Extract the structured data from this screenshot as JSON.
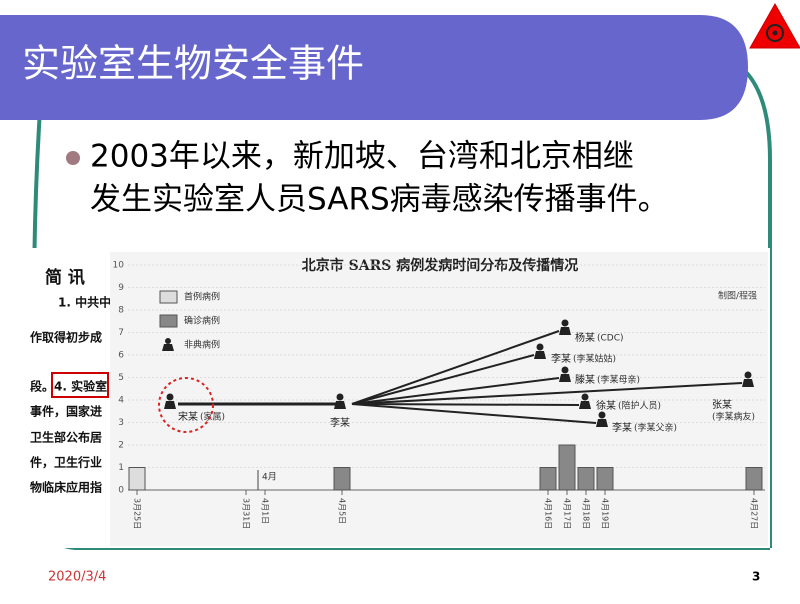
{
  "slide": {
    "title": "实验室生物安全事件",
    "bullet": [
      "2003年以来，新加坡、台湾和北京相继",
      "发生实验室人员SARS病毒感染传播事件。"
    ],
    "date": "2020/3/4",
    "page": "3"
  },
  "document_fragment": [
    "简 讯",
    "1. 中共中",
    "作取得初步成",
    "段。4. 实验室",
    "事件，国家进",
    "卫生部公布居",
    "件，卫生行业",
    "物临床应用指"
  ],
  "figure": {
    "title": "北京市 SARS 病例发病时间分布及传播情况",
    "credit": "制图/程强",
    "legend": [
      "首例病例",
      "确诊病例",
      "非典病例"
    ],
    "yticks": [
      0,
      1,
      2,
      3,
      4,
      5,
      6,
      7,
      8,
      9,
      10
    ],
    "ylim": [
      0,
      10
    ],
    "month_marker": "4月",
    "dates": [
      "3月25日",
      "3月31日",
      "4月1日",
      "4月5日",
      "4月16日",
      "4月17日",
      "4月18日",
      "4月19日",
      "4月27日"
    ],
    "counts": [
      1,
      0,
      0,
      1,
      1,
      2,
      1,
      1,
      1
    ],
    "people": [
      {
        "name": "宋某",
        "note": "(家属)"
      },
      {
        "name": "李某",
        "note": null
      },
      {
        "name": "杨某",
        "note": "(CDC)"
      },
      {
        "name": "李某",
        "note": "(李某姑姑)"
      },
      {
        "name": "滕某",
        "note": "(李某母亲)"
      },
      {
        "name": "徐某",
        "note": "(陪护人员)"
      },
      {
        "name": "李某",
        "note": "(李某父亲)"
      },
      {
        "name": "张某",
        "note": "(李某病友)"
      }
    ]
  }
}
